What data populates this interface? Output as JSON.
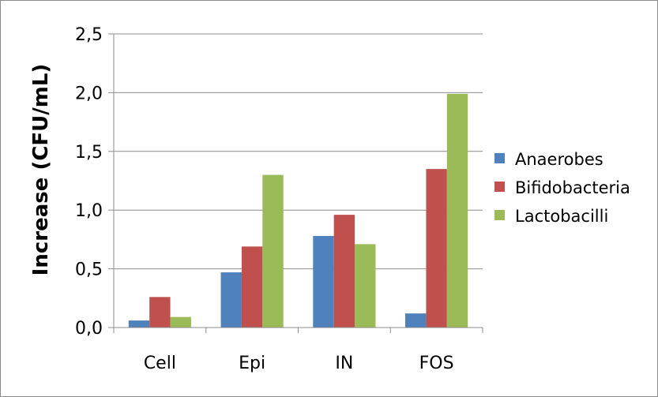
{
  "chart_data": {
    "type": "bar",
    "title": "",
    "xlabel": "",
    "ylabel": "Increase (CFU/mL)",
    "categories": [
      "Cell",
      "Epi",
      "IN",
      "FOS"
    ],
    "ylim": [
      0,
      2.5
    ],
    "yticks": [
      "0,0",
      "0,5",
      "1,0",
      "1,5",
      "2,0",
      "2,5"
    ],
    "ytick_values": [
      0,
      0.5,
      1.0,
      1.5,
      2.0,
      2.5
    ],
    "grid": true,
    "legend_position": "right",
    "series": [
      {
        "name": "Anaerobes",
        "color": "#4f81bd",
        "values": [
          0.06,
          0.47,
          0.78,
          0.12
        ]
      },
      {
        "name": "Bifidobacteria",
        "color": "#c0504d",
        "values": [
          0.26,
          0.69,
          0.96,
          1.35
        ]
      },
      {
        "name": "Lactobacilli",
        "color": "#9bbb59",
        "values": [
          0.09,
          1.3,
          0.71,
          1.99
        ]
      }
    ]
  }
}
